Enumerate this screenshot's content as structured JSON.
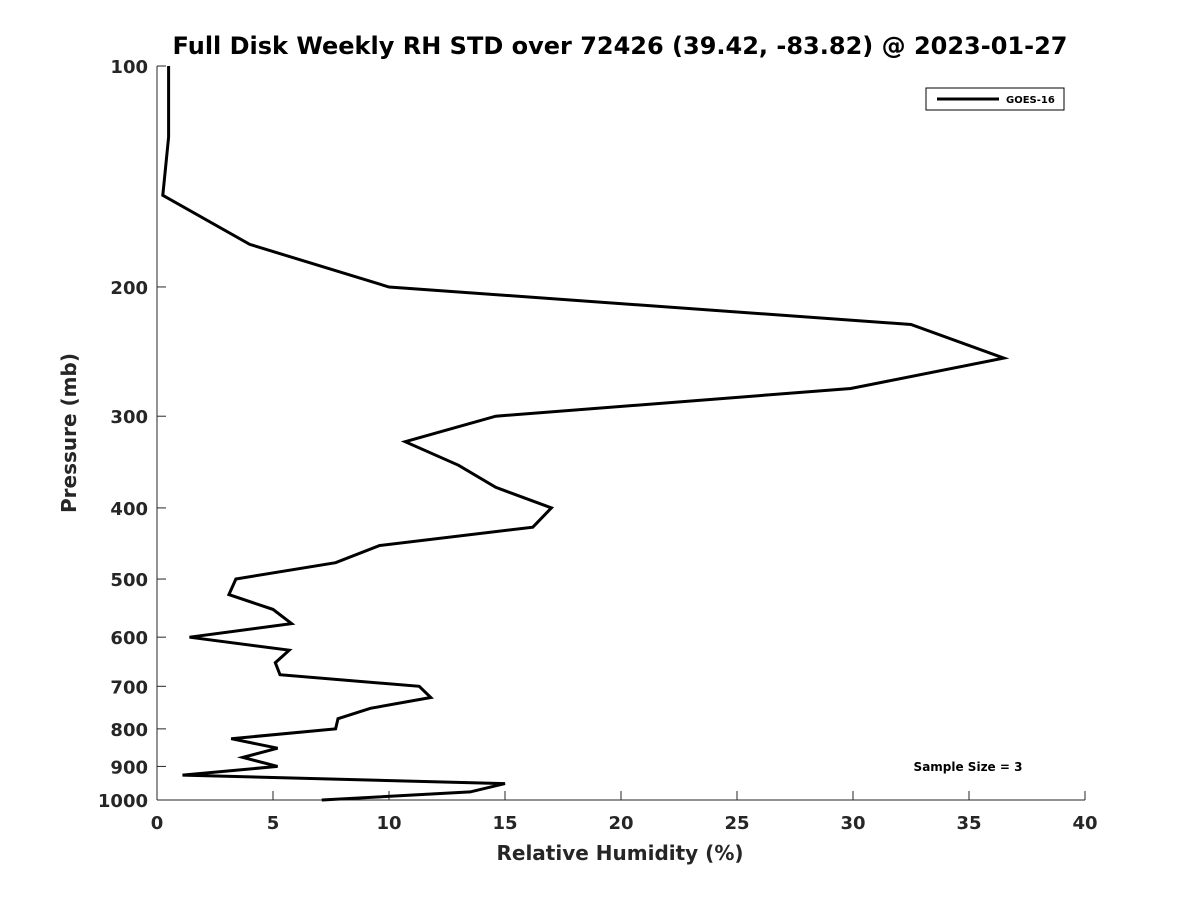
{
  "chart_data": {
    "type": "line",
    "title": "Full Disk Weekly RH STD over 72426 (39.42, -83.82) @ 2023-01-27",
    "xlabel": "Relative Humidity (%)",
    "ylabel": "Pressure (mb)",
    "xlim": [
      0,
      40
    ],
    "ylim": [
      100,
      1000
    ],
    "y_scale": "log",
    "y_reversed": true,
    "x_ticks": [
      0,
      5,
      10,
      15,
      20,
      25,
      30,
      35,
      40
    ],
    "y_ticks": [
      100,
      200,
      300,
      400,
      500,
      600,
      700,
      800,
      900,
      1000
    ],
    "grid": false,
    "legend_position": "top-right",
    "annotation": "Sample Size = 3",
    "series": [
      {
        "name": "GOES-16",
        "color": "#000000",
        "points": [
          {
            "p": 100,
            "rh": 0.5
          },
          {
            "p": 125,
            "rh": 0.5
          },
          {
            "p": 150,
            "rh": 0.25
          },
          {
            "p": 175,
            "rh": 4.0
          },
          {
            "p": 200,
            "rh": 10.0
          },
          {
            "p": 225,
            "rh": 32.5
          },
          {
            "p": 250,
            "rh": 36.5
          },
          {
            "p": 275,
            "rh": 29.9
          },
          {
            "p": 300,
            "rh": 14.6
          },
          {
            "p": 325,
            "rh": 10.7
          },
          {
            "p": 350,
            "rh": 13.0
          },
          {
            "p": 375,
            "rh": 14.6
          },
          {
            "p": 400,
            "rh": 17.0
          },
          {
            "p": 425,
            "rh": 16.2
          },
          {
            "p": 450,
            "rh": 9.6
          },
          {
            "p": 475,
            "rh": 7.7
          },
          {
            "p": 500,
            "rh": 3.4
          },
          {
            "p": 525,
            "rh": 3.1
          },
          {
            "p": 550,
            "rh": 5.0
          },
          {
            "p": 575,
            "rh": 5.8
          },
          {
            "p": 600,
            "rh": 1.4
          },
          {
            "p": 625,
            "rh": 5.7
          },
          {
            "p": 650,
            "rh": 5.1
          },
          {
            "p": 675,
            "rh": 5.3
          },
          {
            "p": 700,
            "rh": 11.3
          },
          {
            "p": 725,
            "rh": 11.8
          },
          {
            "p": 750,
            "rh": 9.2
          },
          {
            "p": 775,
            "rh": 7.8
          },
          {
            "p": 800,
            "rh": 7.7
          },
          {
            "p": 825,
            "rh": 3.2
          },
          {
            "p": 850,
            "rh": 5.2
          },
          {
            "p": 875,
            "rh": 3.7
          },
          {
            "p": 900,
            "rh": 5.2
          },
          {
            "p": 925,
            "rh": 1.1
          },
          {
            "p": 950,
            "rh": 15.0
          },
          {
            "p": 975,
            "rh": 13.5
          },
          {
            "p": 1000,
            "rh": 7.1
          }
        ]
      }
    ]
  }
}
